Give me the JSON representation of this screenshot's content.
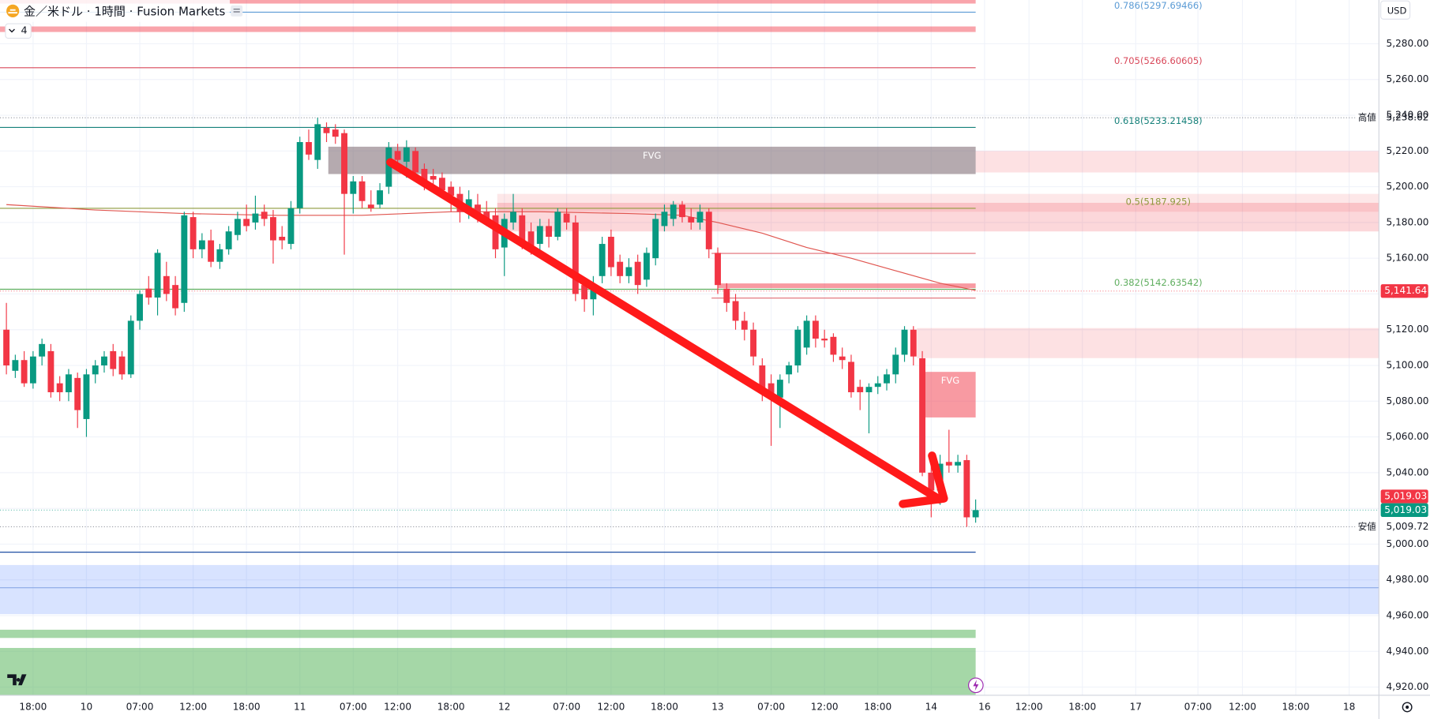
{
  "header": {
    "symbol": "金／米ドル · 1時間 · Fusion Markets",
    "indicator_count": "4",
    "currency": "USD"
  },
  "chart_data": {
    "type": "candlestick",
    "up_color": "#089981",
    "down_color": "#f23645",
    "xlim": [
      -0.72,
      154.35
    ],
    "xticks": [
      {
        "value": 3,
        "label": "18:00"
      },
      {
        "value": 9,
        "label": "10"
      },
      {
        "value": 15,
        "label": "07:00"
      },
      {
        "value": 21,
        "label": "12:00"
      },
      {
        "value": 27,
        "label": "18:00"
      },
      {
        "value": 33,
        "label": "11"
      },
      {
        "value": 39,
        "label": "07:00"
      },
      {
        "value": 44,
        "label": "12:00"
      },
      {
        "value": 50,
        "label": "18:00"
      },
      {
        "value": 56,
        "label": "12"
      },
      {
        "value": 63,
        "label": "07:00"
      },
      {
        "value": 68,
        "label": "12:00"
      },
      {
        "value": 74,
        "label": "18:00"
      },
      {
        "value": 80,
        "label": "13"
      },
      {
        "value": 86,
        "label": "07:00"
      },
      {
        "value": 92,
        "label": "12:00"
      },
      {
        "value": 98,
        "label": "18:00"
      },
      {
        "value": 104,
        "label": "14"
      },
      {
        "value": 110,
        "label": "16"
      },
      {
        "value": 115,
        "label": "12:00"
      },
      {
        "value": 121,
        "label": "18:00"
      },
      {
        "value": 127,
        "label": "17"
      },
      {
        "value": 134,
        "label": "07:00"
      },
      {
        "value": 139,
        "label": "12:00"
      },
      {
        "value": 145,
        "label": "18:00"
      },
      {
        "value": 151,
        "label": "18"
      }
    ],
    "ylim": [
      4915.4,
      5304.5
    ],
    "yticks": [
      {
        "value": 4920,
        "label": "4,920.00"
      },
      {
        "value": 4940,
        "label": "4,940.00"
      },
      {
        "value": 4960,
        "label": "4,960.00"
      },
      {
        "value": 4980,
        "label": "4,980.00"
      },
      {
        "value": 5000,
        "label": "5,000.00"
      },
      {
        "value": 5020,
        "label": "5,020.00"
      },
      {
        "value": 5040,
        "label": "5,040.00"
      },
      {
        "value": 5060,
        "label": "5,060.00"
      },
      {
        "value": 5080,
        "label": "5,080.00"
      },
      {
        "value": 5100,
        "label": "5,100.00"
      },
      {
        "value": 5120,
        "label": "5,120.00"
      },
      {
        "value": 5140,
        "label": "5,140.00"
      },
      {
        "value": 5160,
        "label": "5,160.00"
      },
      {
        "value": 5180,
        "label": "5,180.00"
      },
      {
        "value": 5200,
        "label": "5,200.00"
      },
      {
        "value": 5220,
        "label": "5,220.00"
      },
      {
        "value": 5240,
        "label": "5,240.00"
      },
      {
        "value": 5260,
        "label": "5,260.00"
      },
      {
        "value": 5280,
        "label": "5,280.00"
      }
    ],
    "grid": true,
    "candles": [
      [
        5120,
        5135,
        5095,
        5100
      ],
      [
        5097,
        5106,
        5093,
        5103
      ],
      [
        5103,
        5108,
        5088,
        5090
      ],
      [
        5090,
        5108,
        5087,
        5105
      ],
      [
        5105,
        5115,
        5100,
        5112
      ],
      [
        5108,
        5112,
        5082,
        5085
      ],
      [
        5090,
        5094,
        5080,
        5085
      ],
      [
        5085,
        5098,
        5080,
        5095
      ],
      [
        5093,
        5096,
        5065,
        5075
      ],
      [
        5070,
        5098,
        5060,
        5095
      ],
      [
        5095,
        5103,
        5090,
        5100
      ],
      [
        5100,
        5108,
        5096,
        5105
      ],
      [
        5108,
        5112,
        5094,
        5098
      ],
      [
        5105,
        5108,
        5092,
        5095
      ],
      [
        5095,
        5128,
        5093,
        5125
      ],
      [
        5125,
        5142,
        5120,
        5140
      ],
      [
        5143,
        5150,
        5134,
        5138
      ],
      [
        5138,
        5165,
        5128,
        5163
      ],
      [
        5150,
        5158,
        5136,
        5140
      ],
      [
        5145,
        5150,
        5128,
        5132
      ],
      [
        5135,
        5186,
        5130,
        5184
      ],
      [
        5183,
        5186,
        5160,
        5165
      ],
      [
        5165,
        5174,
        5160,
        5170
      ],
      [
        5170,
        5176,
        5155,
        5158
      ],
      [
        5158,
        5168,
        5154,
        5165
      ],
      [
        5165,
        5178,
        5162,
        5175
      ],
      [
        5173,
        5186,
        5170,
        5182
      ],
      [
        5182,
        5190,
        5175,
        5178
      ],
      [
        5180,
        5195,
        5176,
        5185
      ],
      [
        5186,
        5190,
        5178,
        5182
      ],
      [
        5183,
        5187,
        5157,
        5170
      ],
      [
        5172,
        5178,
        5165,
        5170
      ],
      [
        5168,
        5192,
        5165,
        5188
      ],
      [
        5188,
        5228,
        5185,
        5225
      ],
      [
        5225,
        5232,
        5215,
        5218
      ],
      [
        5215,
        5238.62,
        5210,
        5235
      ],
      [
        5233,
        5236,
        5225,
        5230
      ],
      [
        5232,
        5235,
        5224,
        5228
      ],
      [
        5230,
        5232,
        5162,
        5196
      ],
      [
        5196,
        5206,
        5185,
        5203
      ],
      [
        5203,
        5206,
        5188,
        5192
      ],
      [
        5190,
        5198,
        5186,
        5188
      ],
      [
        5190,
        5202,
        5188,
        5198
      ],
      [
        5200,
        5225,
        5196,
        5222
      ],
      [
        5220,
        5224,
        5210,
        5215
      ],
      [
        5214,
        5226,
        5205,
        5222
      ],
      [
        5220,
        5222,
        5204,
        5208
      ],
      [
        5210,
        5213,
        5198,
        5203
      ],
      [
        5206,
        5210,
        5200,
        5204
      ],
      [
        5205,
        5208,
        5194,
        5198
      ],
      [
        5200,
        5203,
        5186,
        5195
      ],
      [
        5196,
        5200,
        5180,
        5186
      ],
      [
        5188,
        5198,
        5182,
        5193
      ],
      [
        5190,
        5196,
        5180,
        5184
      ],
      [
        5186,
        5192,
        5178,
        5182
      ],
      [
        5184,
        5188,
        5160,
        5165
      ],
      [
        5166,
        5185,
        5150,
        5182
      ],
      [
        5180,
        5196,
        5176,
        5186
      ],
      [
        5184,
        5188,
        5165,
        5170
      ],
      [
        5175,
        5180,
        5162,
        5165
      ],
      [
        5168,
        5182,
        5164,
        5178
      ],
      [
        5178,
        5182,
        5166,
        5172
      ],
      [
        5172,
        5188,
        5170,
        5186
      ],
      [
        5185,
        5188,
        5176,
        5180
      ],
      [
        5180,
        5184,
        5136,
        5140
      ],
      [
        5145,
        5148,
        5130,
        5137
      ],
      [
        5137,
        5150,
        5128,
        5145
      ],
      [
        5150,
        5172,
        5146,
        5168
      ],
      [
        5172,
        5176,
        5150,
        5155
      ],
      [
        5158,
        5162,
        5146,
        5150
      ],
      [
        5150,
        5160,
        5146,
        5155
      ],
      [
        5158,
        5162,
        5140,
        5145
      ],
      [
        5148,
        5166,
        5144,
        5163
      ],
      [
        5160,
        5185,
        5156,
        5182
      ],
      [
        5178,
        5190,
        5175,
        5186
      ],
      [
        5182,
        5192,
        5178,
        5190
      ],
      [
        5190,
        5192,
        5180,
        5183
      ],
      [
        5183,
        5188,
        5176,
        5180
      ],
      [
        5180,
        5190,
        5176,
        5186
      ],
      [
        5186,
        5188,
        5160,
        5165
      ],
      [
        5163,
        5166,
        5140,
        5145
      ],
      [
        5143,
        5146,
        5130,
        5135
      ],
      [
        5136,
        5140,
        5120,
        5125
      ],
      [
        5125,
        5130,
        5114,
        5120
      ],
      [
        5120,
        5124,
        5100,
        5105
      ],
      [
        5100,
        5104,
        5080,
        5085
      ],
      [
        5090,
        5095,
        5055,
        5082
      ],
      [
        5082,
        5095,
        5065,
        5092
      ],
      [
        5095,
        5102,
        5090,
        5100
      ],
      [
        5100,
        5122,
        5096,
        5120
      ],
      [
        5110,
        5128,
        5106,
        5125
      ],
      [
        5125,
        5128,
        5110,
        5115
      ],
      [
        5115,
        5120,
        5110,
        5114
      ],
      [
        5116,
        5118,
        5102,
        5106
      ],
      [
        5105,
        5110,
        5098,
        5103
      ],
      [
        5102,
        5106,
        5082,
        5085
      ],
      [
        5088,
        5092,
        5075,
        5085
      ],
      [
        5085,
        5090,
        5062,
        5088
      ],
      [
        5088,
        5094,
        5084,
        5090
      ],
      [
        5090,
        5098,
        5086,
        5095
      ],
      [
        5095,
        5110,
        5090,
        5106
      ],
      [
        5106,
        5122,
        5102,
        5120
      ],
      [
        5120,
        5122,
        5100,
        5105
      ],
      [
        5104,
        5108,
        5038,
        5040
      ],
      [
        5040,
        5044,
        5015,
        5030
      ],
      [
        5030,
        5050,
        5022,
        5045
      ],
      [
        5046,
        5064,
        5040,
        5044
      ],
      [
        5044,
        5050,
        5040,
        5046
      ],
      [
        5047,
        5050,
        5009.72,
        5015
      ],
      [
        5015,
        5025,
        5012,
        5019.03
      ]
    ],
    "ma": {
      "color": "#e0554f",
      "x": [
        0,
        10,
        20,
        30,
        40,
        50,
        60,
        70,
        76,
        80,
        85,
        90,
        95,
        100,
        105,
        109
      ],
      "values": [
        5190,
        5187,
        5185,
        5184,
        5184,
        5186,
        5186,
        5185,
        5184,
        5180,
        5174,
        5166,
        5160,
        5153,
        5146,
        5142
      ]
    },
    "fibs": [
      {
        "label": "0.786(5297.69466)",
        "value": 5297.69466,
        "color": "#5b9bd5"
      },
      {
        "label": "0.705(5266.60605)",
        "value": 5266.60605,
        "color": "#d9485a"
      },
      {
        "label": "0.618(5233.21458)",
        "value": 5233.21458,
        "color": "#15807a"
      },
      {
        "label": "0.5(5187.925)",
        "value": 5187.925,
        "color": "#8e9a3c"
      },
      {
        "label": "0.382(5142.63542)",
        "value": 5142.63542,
        "color": "#5fae5f"
      }
    ],
    "fib_x_to": 109,
    "levels": [
      {
        "value": 4995.5,
        "color": "#1e4fa3",
        "x_to": 109
      },
      {
        "value": 4975.6,
        "color": "#8aa9e6"
      },
      {
        "value": 5162.7,
        "color": "#e06a73",
        "x_from": 79.3,
        "x_to": 109
      },
      {
        "value": 5137.7,
        "color": "#e06a73",
        "x_from": 79.3,
        "x_to": 109
      }
    ],
    "zones": [
      {
        "from": 5302.5,
        "to": 5304.5,
        "x_to": 109,
        "color": "rgba(242,54,69,0.45)"
      },
      {
        "from": 5286.6,
        "to": 5289.7,
        "x_to": 109,
        "color": "rgba(242,54,69,0.45)"
      },
      {
        "from": 5207.1,
        "to": 5222.4,
        "x_from": 36.2,
        "x_to": 109,
        "color": "rgba(120,100,110,0.55)",
        "label": "FVG"
      },
      {
        "from": 5208,
        "to": 5220,
        "x_from": 109,
        "color": "rgba(242,54,69,0.15)"
      },
      {
        "from": 5186,
        "to": 5196,
        "x_from": 55.2,
        "color": "rgba(242,54,69,0.12)"
      },
      {
        "from": 5175,
        "to": 5191,
        "x_from": 55.2,
        "color": "rgba(242,54,69,0.2)"
      },
      {
        "from": 5143.3,
        "to": 5145.9,
        "x_from": 80,
        "x_to": 109,
        "color": "rgba(242,54,69,0.5)"
      },
      {
        "from": 5104.1,
        "to": 5120.9,
        "x_from": 102.4,
        "color": "rgba(242,54,69,0.15)"
      },
      {
        "from": 5070.9,
        "to": 5096.4,
        "x_from": 103.3,
        "x_to": 109,
        "color": "rgba(242,54,69,0.5)",
        "label": "FVG"
      },
      {
        "from": 4960.8,
        "to": 4988.3,
        "color": "rgba(41,98,255,0.18)"
      },
      {
        "from": 4947.5,
        "to": 4952.1,
        "x_to": 109,
        "color": "rgba(76,175,80,0.5)"
      },
      {
        "from": 4915.4,
        "to": 4941.9,
        "x_to": 109,
        "color": "rgba(76,175,80,0.5)"
      }
    ],
    "extremes": [
      {
        "name": "高値",
        "label": "5,238.62",
        "value": 5238.62
      },
      {
        "name": "安値",
        "label": "5,009.72",
        "value": 5009.72
      }
    ],
    "price_tags": [
      {
        "label": "5,141.64",
        "value": 5141.64,
        "color": "#f23645"
      },
      {
        "label": "5,019.03",
        "value": 5019.03,
        "color": "#f23645"
      },
      {
        "label": "5,019.03",
        "value": 5019.03,
        "color": "#089981"
      }
    ]
  }
}
